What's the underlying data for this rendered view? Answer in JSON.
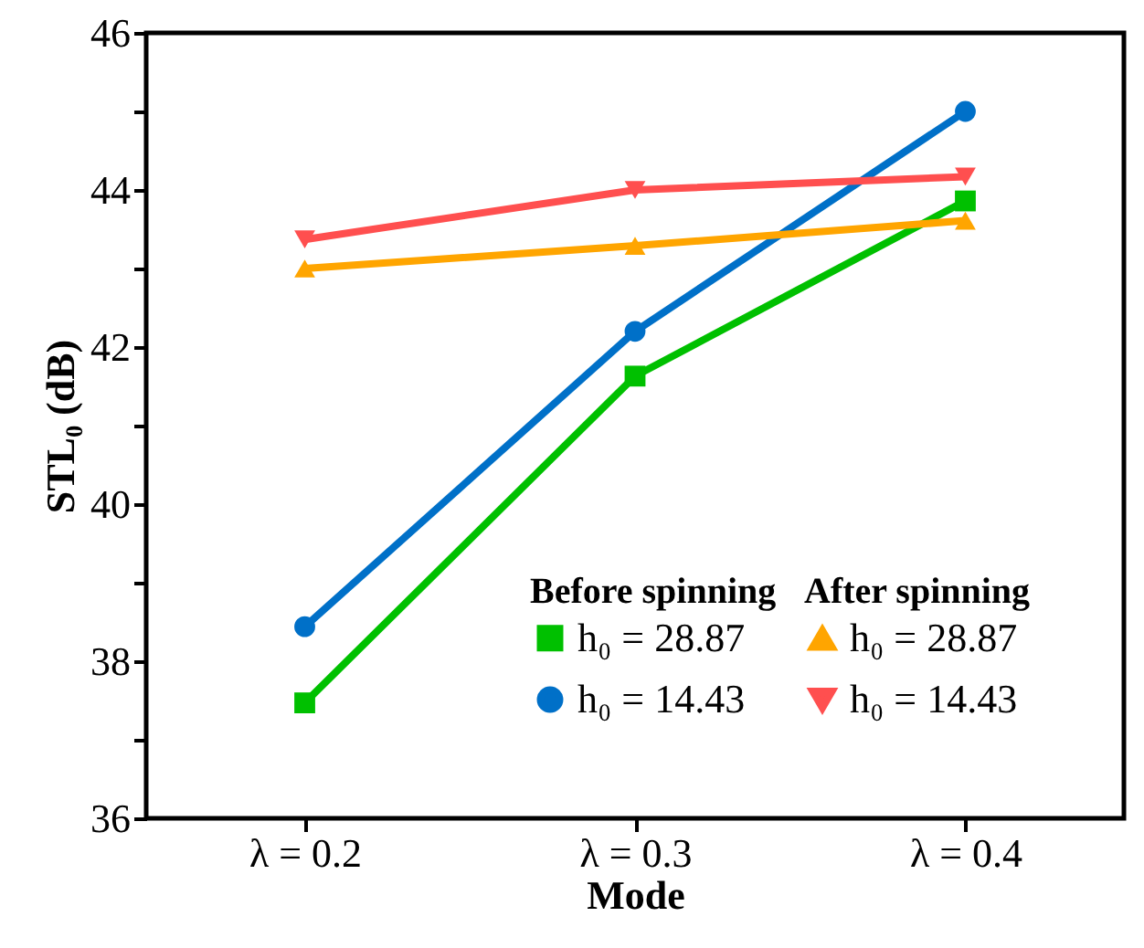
{
  "chart_data": {
    "type": "line",
    "xlabel": "Mode",
    "ylabel": "STL₀ (dB)",
    "categories": [
      "λ = 0.2",
      "λ = 0.3",
      "λ = 0.4"
    ],
    "series": [
      {
        "name": "h₀ = 28.87",
        "color": "#00c000",
        "marker": "square",
        "values": [
          37.47,
          41.63,
          43.86
        ]
      },
      {
        "name": "h₀ = 14.43",
        "color": "#0070c8",
        "marker": "circle",
        "values": [
          38.44,
          42.2,
          45.0
        ]
      },
      {
        "name": "h₀ = 28.87",
        "color": "#ffa500",
        "marker": "triangle-up",
        "values": [
          43.0,
          43.29,
          43.61
        ]
      },
      {
        "name": "h₀ = 14.43",
        "color": "#ff4f4f",
        "marker": "triangle-down",
        "values": [
          43.37,
          44.0,
          44.17
        ]
      }
    ],
    "ylim": [
      36,
      46
    ],
    "yticks": [
      36,
      {
        "value": 37,
        "label": null
      },
      38,
      {
        "value": 39,
        "label": null
      },
      40,
      {
        "value": 41,
        "label": null
      },
      42,
      {
        "value": 43,
        "label": null
      },
      44,
      {
        "value": 45,
        "label": null
      },
      46
    ],
    "annotations": [
      "Before spinning",
      "After spinning"
    ],
    "grid": false,
    "legend": "bottom right",
    "line_style": "solid"
  }
}
